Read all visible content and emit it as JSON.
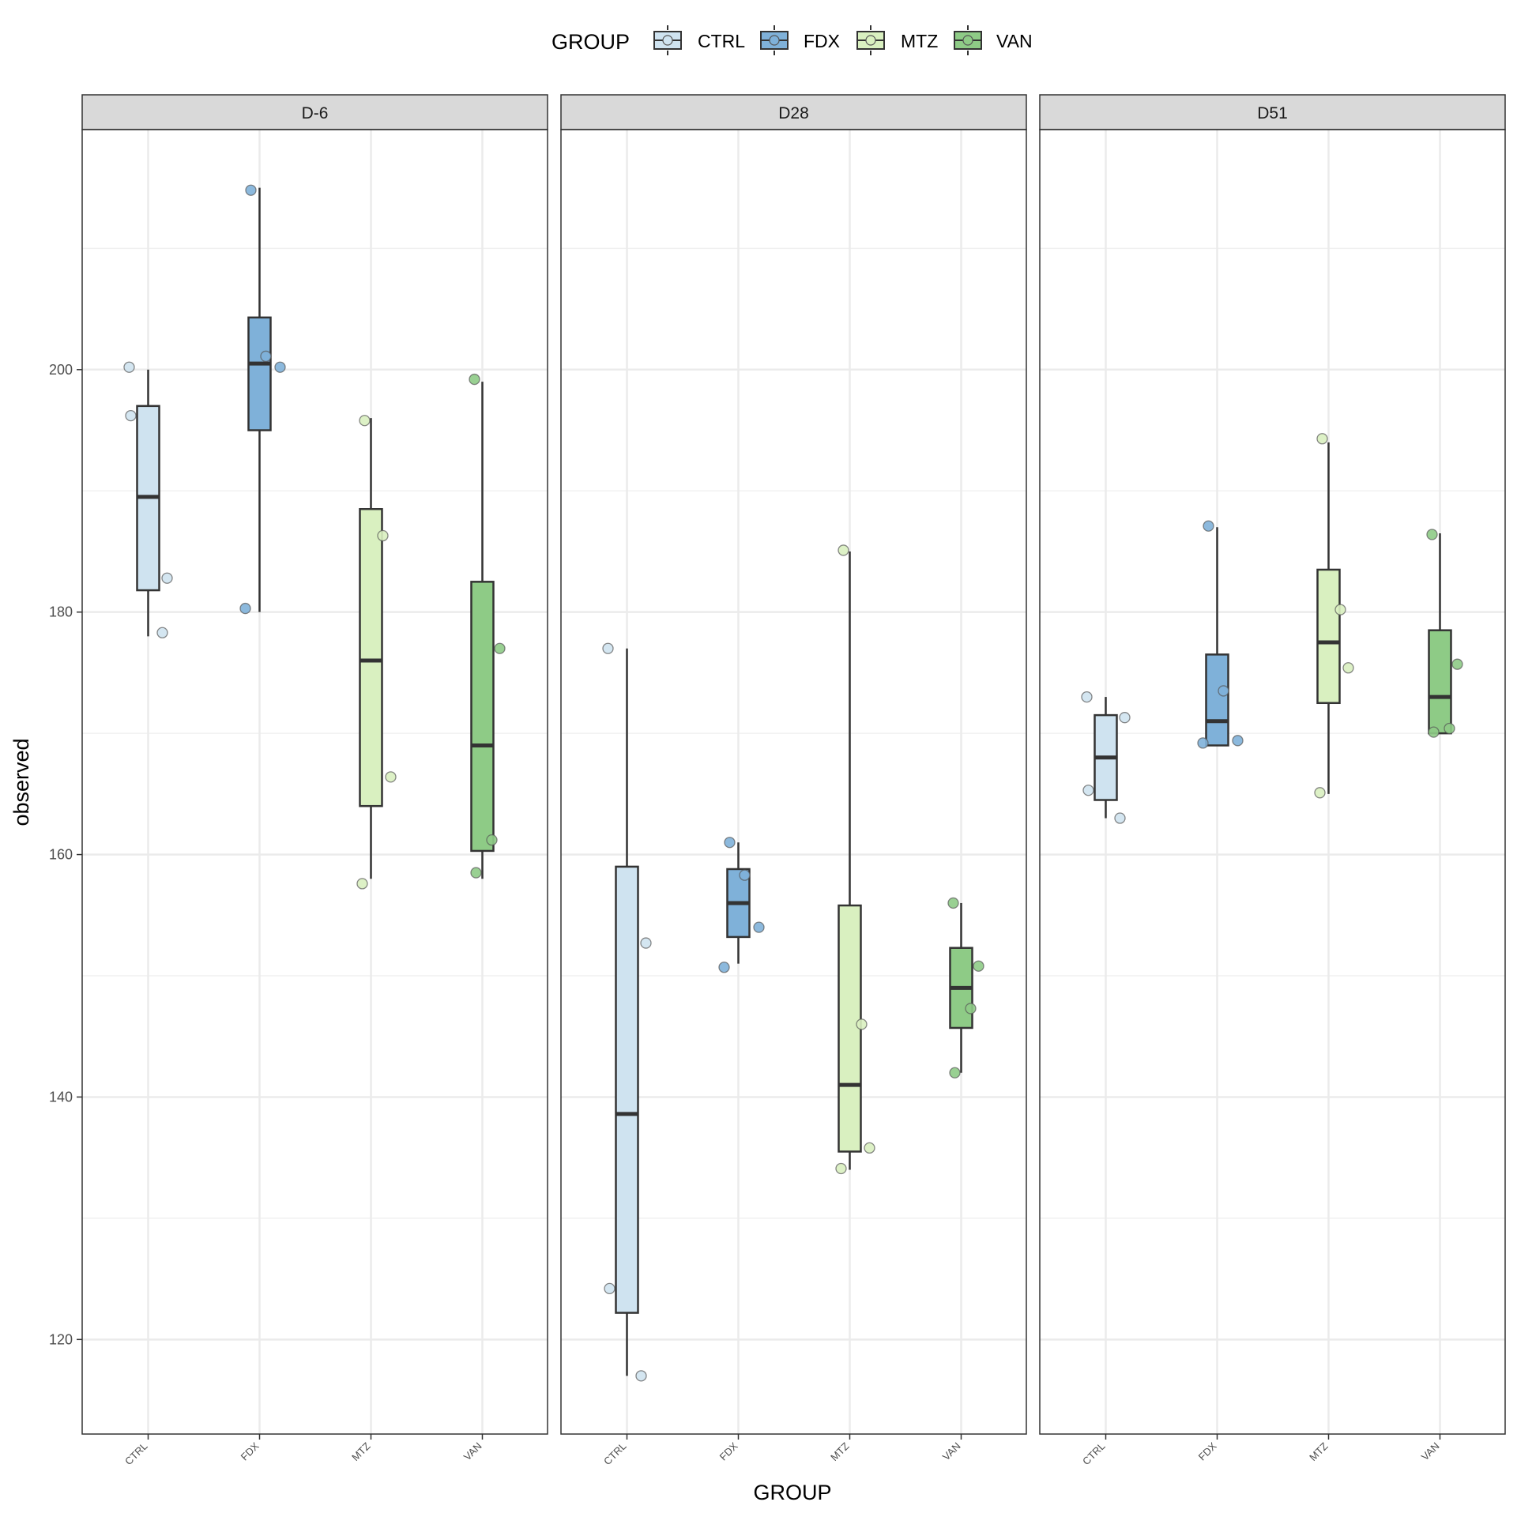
{
  "chart_data": {
    "type": "boxplot",
    "xlabel": "GROUP",
    "ylabel": "observed",
    "ylim": [
      112.2,
      219.8
    ],
    "yticks": [
      120,
      140,
      160,
      180,
      200
    ],
    "categories": [
      "CTRL",
      "FDX",
      "MTZ",
      "VAN"
    ],
    "legend": {
      "title": "GROUP",
      "position": "top",
      "items": [
        {
          "label": "CTRL",
          "color": "#cfe3f0"
        },
        {
          "label": "FDX",
          "color": "#7fb1d9"
        },
        {
          "label": "MTZ",
          "color": "#d9f0c0"
        },
        {
          "label": "VAN",
          "color": "#8ecb86"
        }
      ]
    },
    "grid": true,
    "panels": [
      {
        "label": "D-6",
        "boxes": [
          {
            "group": "CTRL",
            "min": 178.0,
            "q1": 181.8,
            "median": 189.5,
            "q3": 197.0,
            "max": 200.0,
            "points": [
              200.2,
              182.8,
              196.2,
              178.3
            ]
          },
          {
            "group": "FDX",
            "min": 180.0,
            "q1": 195.0,
            "median": 200.5,
            "q3": 204.3,
            "max": 215.0,
            "points": [
              214.8,
              201.1,
              200.2,
              180.3
            ]
          },
          {
            "group": "MTZ",
            "min": 158.0,
            "q1": 164.0,
            "median": 176.0,
            "q3": 188.5,
            "max": 196.0,
            "points": [
              195.8,
              186.3,
              166.4,
              157.6
            ]
          },
          {
            "group": "VAN",
            "min": 158.0,
            "q1": 160.3,
            "median": 169.0,
            "q3": 182.5,
            "max": 199.0,
            "points": [
              199.2,
              177.0,
              161.2,
              158.5
            ]
          }
        ]
      },
      {
        "label": "D28",
        "boxes": [
          {
            "group": "CTRL",
            "min": 117.0,
            "q1": 122.2,
            "median": 138.6,
            "q3": 159.0,
            "max": 177.0,
            "points": [
              177.0,
              152.7,
              124.2,
              117.0
            ]
          },
          {
            "group": "FDX",
            "min": 151.0,
            "q1": 153.2,
            "median": 156.0,
            "q3": 158.8,
            "max": 161.0,
            "points": [
              161.0,
              158.3,
              154.0,
              150.7
            ]
          },
          {
            "group": "MTZ",
            "min": 134.0,
            "q1": 135.5,
            "median": 141.0,
            "q3": 155.8,
            "max": 185.0,
            "points": [
              185.1,
              146.0,
              135.8,
              134.1
            ]
          },
          {
            "group": "VAN",
            "min": 142.0,
            "q1": 145.7,
            "median": 149.0,
            "q3": 152.3,
            "max": 156.0,
            "points": [
              156.0,
              150.8,
              147.3,
              142.0
            ]
          }
        ]
      },
      {
        "label": "D51",
        "boxes": [
          {
            "group": "CTRL",
            "min": 163.0,
            "q1": 164.5,
            "median": 168.0,
            "q3": 171.5,
            "max": 173.0,
            "points": [
              173.0,
              171.3,
              165.3,
              163.0
            ]
          },
          {
            "group": "FDX",
            "min": 169.0,
            "q1": 169.0,
            "median": 171.0,
            "q3": 176.5,
            "max": 187.0,
            "points": [
              187.1,
              173.5,
              169.4,
              169.2
            ]
          },
          {
            "group": "MTZ",
            "min": 165.0,
            "q1": 172.5,
            "median": 177.5,
            "q3": 183.5,
            "max": 194.0,
            "points": [
              194.3,
              180.2,
              175.4,
              165.1
            ]
          },
          {
            "group": "VAN",
            "min": 170.0,
            "q1": 170.0,
            "median": 173.0,
            "q3": 178.5,
            "max": 186.5,
            "points": [
              186.4,
              175.7,
              170.4,
              170.1
            ]
          }
        ]
      }
    ]
  }
}
